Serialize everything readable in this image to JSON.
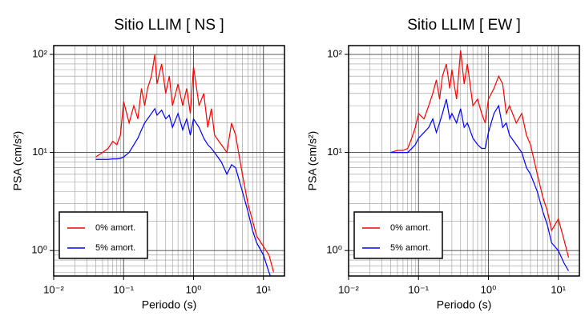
{
  "chart_data": [
    {
      "type": "line",
      "title": "Sitio LLIM [ NS ]",
      "xlabel": "Periodo (s)",
      "ylabel": "PSA (cm/s²)",
      "log_x": true,
      "log_y": true,
      "grid": true,
      "legend": "lower left",
      "xlim": [
        0.01,
        20
      ],
      "ylim": [
        0.55,
        123
      ],
      "xticks": [
        {
          "value": 0.01,
          "label": "10⁻²"
        },
        {
          "value": 0.1,
          "label": "10⁻¹"
        },
        {
          "value": 1,
          "label": "10⁰"
        },
        {
          "value": 10,
          "label": "10¹"
        }
      ],
      "yticks": [
        {
          "value": 1,
          "label": "10⁰"
        },
        {
          "value": 10,
          "label": "10¹"
        },
        {
          "value": 100,
          "label": "10²"
        }
      ],
      "x": [
        0.04,
        0.05,
        0.06,
        0.07,
        0.08,
        0.09,
        0.1,
        0.12,
        0.14,
        0.16,
        0.18,
        0.2,
        0.22,
        0.25,
        0.28,
        0.3,
        0.35,
        0.4,
        0.45,
        0.5,
        0.6,
        0.7,
        0.8,
        0.9,
        1.0,
        1.2,
        1.4,
        1.6,
        1.8,
        2.0,
        2.5,
        3.0,
        3.5,
        4.0,
        5.0,
        6.0,
        7.0,
        8.0,
        10,
        12,
        14
      ],
      "series": [
        {
          "name": "0% amort.",
          "color": "#ff0000",
          "values": [
            9,
            10,
            11,
            13,
            12,
            15,
            33,
            20,
            30,
            22,
            45,
            30,
            45,
            60,
            100,
            50,
            80,
            40,
            60,
            30,
            50,
            30,
            45,
            25,
            75,
            30,
            40,
            18,
            28,
            15,
            12,
            10,
            20,
            15,
            6,
            3,
            2,
            1.4,
            1.1,
            0.9,
            0.6
          ]
        },
        {
          "name": "5% amort.",
          "color": "#0000ff",
          "values": [
            8.5,
            8.5,
            8.5,
            8.6,
            8.6,
            8.7,
            9,
            10,
            12,
            14,
            17,
            20,
            22,
            25,
            28,
            24,
            27,
            22,
            24,
            18,
            25,
            17,
            22,
            15,
            22,
            18,
            14,
            12,
            11,
            10,
            8,
            6,
            7.5,
            7,
            4,
            2.5,
            1.6,
            1.2,
            0.9,
            0.6,
            0.45
          ]
        }
      ]
    },
    {
      "type": "line",
      "title": "Sitio LLIM [ EW ]",
      "xlabel": "Periodo (s)",
      "ylabel": "PSA (cm/s²)",
      "log_x": true,
      "log_y": true,
      "grid": true,
      "legend": "lower left",
      "xlim": [
        0.01,
        20
      ],
      "ylim": [
        0.55,
        123
      ],
      "xticks": [
        {
          "value": 0.01,
          "label": "10⁻²"
        },
        {
          "value": 0.1,
          "label": "10⁻¹"
        },
        {
          "value": 1,
          "label": "10⁰"
        },
        {
          "value": 10,
          "label": "10¹"
        }
      ],
      "yticks": [
        {
          "value": 1,
          "label": "10⁰"
        },
        {
          "value": 10,
          "label": "10¹"
        },
        {
          "value": 100,
          "label": "10²"
        }
      ],
      "x": [
        0.04,
        0.05,
        0.06,
        0.07,
        0.08,
        0.09,
        0.1,
        0.12,
        0.14,
        0.16,
        0.18,
        0.2,
        0.22,
        0.25,
        0.28,
        0.3,
        0.35,
        0.4,
        0.45,
        0.5,
        0.6,
        0.7,
        0.8,
        0.9,
        1.0,
        1.2,
        1.4,
        1.6,
        1.8,
        2.0,
        2.5,
        3.0,
        3.5,
        4.0,
        5.0,
        6.0,
        7.0,
        8.0,
        10,
        12,
        14
      ],
      "series": [
        {
          "name": "0% amort.",
          "color": "#ff0000",
          "values": [
            10,
            10.5,
            10.5,
            11,
            14,
            18,
            25,
            22,
            30,
            40,
            55,
            35,
            60,
            80,
            45,
            70,
            35,
            110,
            50,
            80,
            30,
            35,
            25,
            20,
            35,
            45,
            60,
            50,
            25,
            30,
            20,
            25,
            15,
            12,
            6,
            3.5,
            2.5,
            1.6,
            2.1,
            1.3,
            0.85
          ]
        },
        {
          "name": "5% amort.",
          "color": "#0000ff",
          "values": [
            10,
            10,
            10,
            10,
            11,
            12,
            14,
            16,
            18,
            22,
            16,
            20,
            25,
            35,
            22,
            25,
            20,
            28,
            18,
            20,
            14,
            12,
            11,
            11,
            16,
            25,
            30,
            18,
            20,
            15,
            12,
            10,
            7,
            6,
            4,
            2.5,
            1.8,
            1.2,
            1.0,
            0.75,
            0.62
          ]
        }
      ]
    }
  ]
}
